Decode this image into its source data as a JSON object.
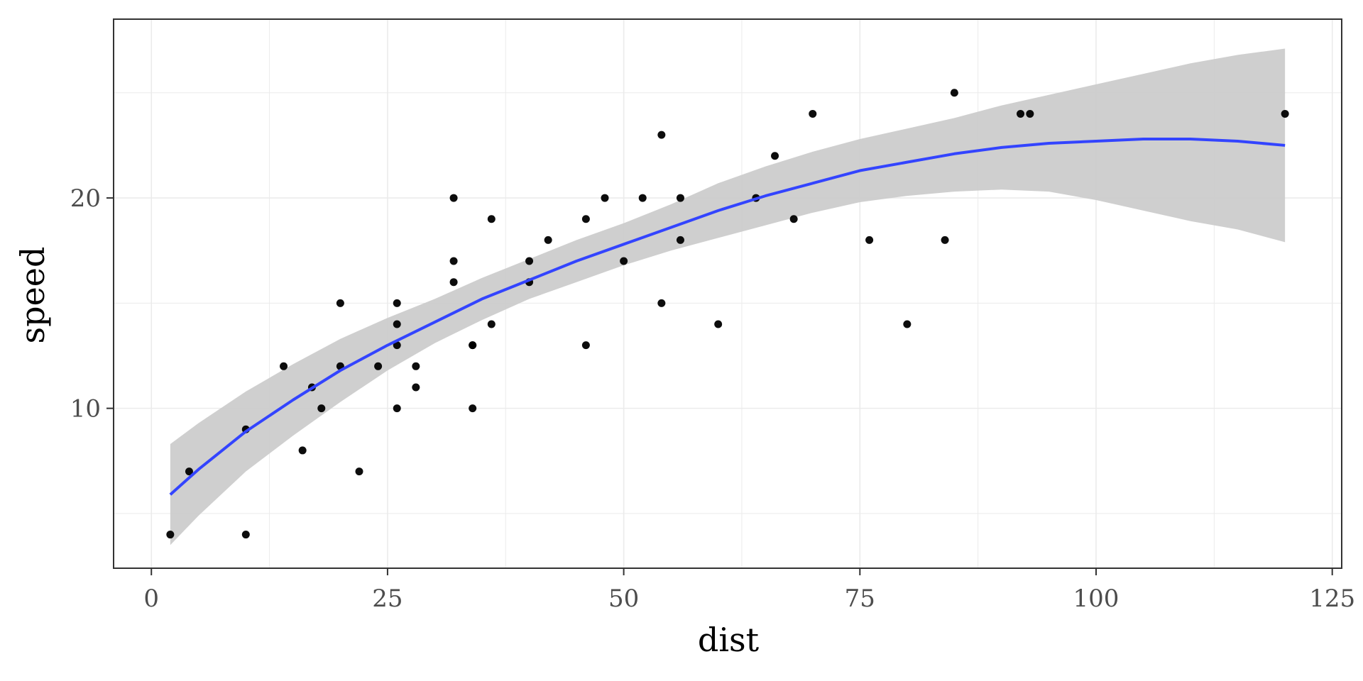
{
  "chart_data": {
    "type": "scatter",
    "title": "",
    "xlabel": "dist",
    "ylabel": "speed",
    "xlim": [
      -4,
      126
    ],
    "ylim": [
      2.4,
      28.5
    ],
    "x_ticks": [
      0,
      25,
      50,
      75,
      100,
      125
    ],
    "x_tick_labels": [
      "0",
      "25",
      "50",
      "75",
      "100",
      "125"
    ],
    "y_ticks": [
      10,
      20
    ],
    "y_tick_labels": [
      "10",
      "20"
    ],
    "grid": true,
    "theme": "white background, black panel border, light grey gridlines",
    "series": [
      {
        "type": "scatter",
        "color": "#000000",
        "points": [
          [
            2,
            4
          ],
          [
            10,
            4
          ],
          [
            4,
            7
          ],
          [
            22,
            7
          ],
          [
            16,
            8
          ],
          [
            10,
            9
          ],
          [
            18,
            10
          ],
          [
            26,
            10
          ],
          [
            34,
            10
          ],
          [
            17,
            11
          ],
          [
            28,
            11
          ],
          [
            14,
            12
          ],
          [
            20,
            12
          ],
          [
            24,
            12
          ],
          [
            28,
            12
          ],
          [
            26,
            13
          ],
          [
            34,
            13
          ],
          [
            34,
            13
          ],
          [
            46,
            13
          ],
          [
            26,
            14
          ],
          [
            36,
            14
          ],
          [
            60,
            14
          ],
          [
            80,
            14
          ],
          [
            20,
            15
          ],
          [
            26,
            15
          ],
          [
            54,
            15
          ],
          [
            32,
            16
          ],
          [
            40,
            16
          ],
          [
            32,
            17
          ],
          [
            40,
            17
          ],
          [
            50,
            17
          ],
          [
            42,
            18
          ],
          [
            56,
            18
          ],
          [
            76,
            18
          ],
          [
            84,
            18
          ],
          [
            36,
            19
          ],
          [
            46,
            19
          ],
          [
            68,
            19
          ],
          [
            32,
            20
          ],
          [
            48,
            20
          ],
          [
            52,
            20
          ],
          [
            56,
            20
          ],
          [
            64,
            20
          ],
          [
            66,
            22
          ],
          [
            54,
            23
          ],
          [
            70,
            24
          ],
          [
            92,
            24
          ],
          [
            93,
            24
          ],
          [
            120,
            24
          ],
          [
            85,
            25
          ]
        ]
      },
      {
        "type": "line",
        "color": "#3344ff",
        "fit": "loess",
        "x": [
          2,
          5,
          10,
          15,
          20,
          25,
          30,
          35,
          40,
          45,
          50,
          55,
          60,
          65,
          70,
          75,
          80,
          85,
          90,
          95,
          100,
          105,
          110,
          115,
          120
        ],
        "y": [
          5.9,
          7.1,
          8.9,
          10.4,
          11.8,
          13.0,
          14.1,
          15.2,
          16.1,
          17.0,
          17.8,
          18.6,
          19.4,
          20.1,
          20.7,
          21.3,
          21.7,
          22.1,
          22.4,
          22.6,
          22.7,
          22.8,
          22.8,
          22.7,
          22.5
        ],
        "ci_lower": [
          3.5,
          4.9,
          7.0,
          8.7,
          10.3,
          11.8,
          13.1,
          14.2,
          15.2,
          16.0,
          16.8,
          17.5,
          18.1,
          18.7,
          19.3,
          19.8,
          20.1,
          20.3,
          20.4,
          20.3,
          19.9,
          19.4,
          18.9,
          18.5,
          17.9
        ],
        "ci_upper": [
          8.3,
          9.3,
          10.8,
          12.1,
          13.3,
          14.3,
          15.2,
          16.2,
          17.1,
          18.0,
          18.8,
          19.7,
          20.7,
          21.5,
          22.2,
          22.8,
          23.3,
          23.8,
          24.4,
          24.9,
          25.4,
          25.9,
          26.4,
          26.8,
          27.1
        ],
        "ci_color": "#cccccc"
      }
    ]
  }
}
